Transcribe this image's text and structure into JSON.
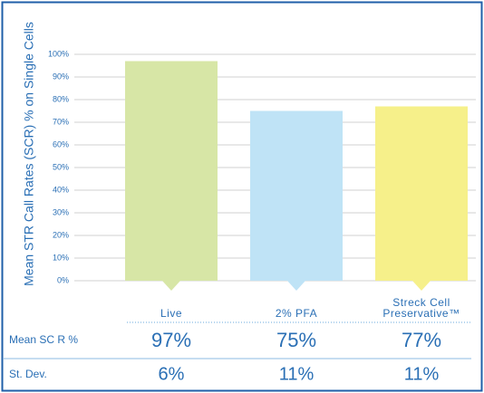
{
  "chart_data": {
    "type": "bar",
    "y_axis_label": "Mean STR Call Rates  (SCR) % on Single Cells",
    "categories": [
      "Live",
      "2% PFA",
      "Streck Cell Preservative™"
    ],
    "values": [
      97,
      75,
      77
    ],
    "value_labels": [
      "97%",
      "75%",
      "77%"
    ],
    "colors": [
      "#d7e6a6",
      "#bfe3f6",
      "#f6f08a"
    ],
    "ylim": [
      0,
      100
    ],
    "yticks": [
      {
        "value": 0,
        "label": "0%"
      },
      {
        "value": 10,
        "label": "10%"
      },
      {
        "value": 20,
        "label": "20%"
      },
      {
        "value": 30,
        "label": "30%"
      },
      {
        "value": 40,
        "label": "40%"
      },
      {
        "value": 50,
        "label": "50%"
      },
      {
        "value": 60,
        "label": "60%"
      },
      {
        "value": 70,
        "label": "70%"
      },
      {
        "value": 80,
        "label": "80%"
      },
      {
        "value": 90,
        "label": "90%"
      },
      {
        "value": 100,
        "label": "100%"
      }
    ],
    "grid": true
  },
  "table": {
    "row_labels": [
      "Mean SC R %",
      "St. Dev."
    ],
    "stdev": [
      "6%",
      "11%",
      "11%"
    ]
  }
}
